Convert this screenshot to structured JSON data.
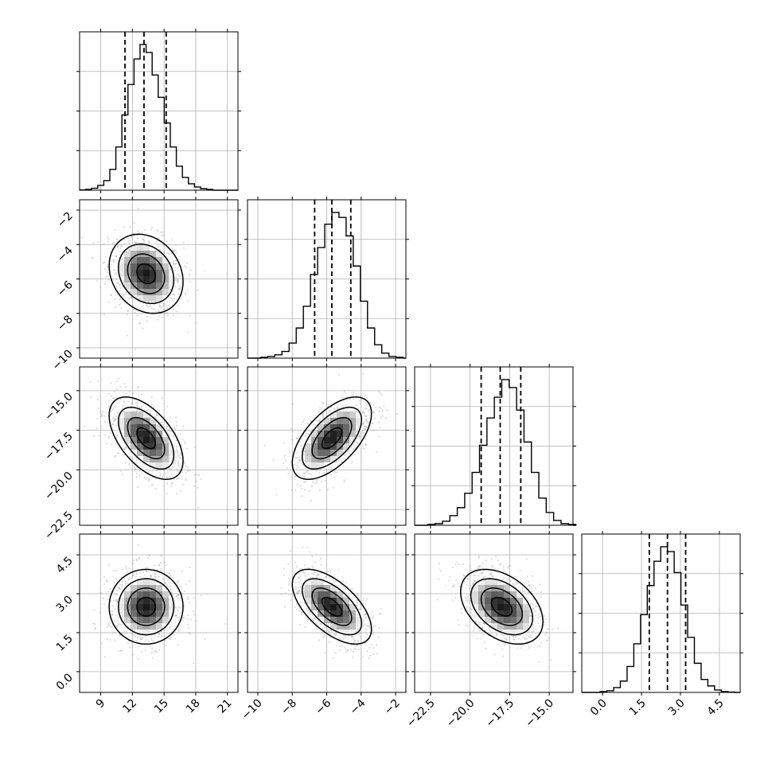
{
  "chart_data": {
    "type": "corner",
    "parameters": [
      {
        "index": 0,
        "range": [
          7,
          22
        ],
        "ticks": [
          "9",
          "12",
          "15",
          "18",
          "21"
        ],
        "tick_values": [
          9,
          12,
          15,
          18,
          21
        ],
        "quantiles": [
          11.3,
          13.1,
          15.2
        ],
        "mean": 13.3,
        "sd": 1.75,
        "hist_peak": 0.91
      },
      {
        "index": 1,
        "range": [
          -10.6,
          -1.4
        ],
        "ticks": [
          "−10",
          "−8",
          "−6",
          "−4",
          "−2"
        ],
        "tick_values": [
          -10,
          -8,
          -6,
          -4,
          -2
        ],
        "quantiles": [
          -6.7,
          -5.7,
          -4.6
        ],
        "mean": -5.7,
        "sd": 1.15,
        "hist_peak": 0.87
      },
      {
        "index": 2,
        "range": [
          -23.5,
          -13.5
        ],
        "ticks": [
          "−22.5",
          "−20.0",
          "−17.5",
          "−15.0"
        ],
        "tick_values": [
          -22.5,
          -20.0,
          -17.5,
          -15.0
        ],
        "quantiles": [
          -19.3,
          -18.1,
          -16.8
        ],
        "mean": -18.0,
        "sd": 1.3,
        "hist_peak": 0.91
      },
      {
        "index": 3,
        "range": [
          -0.8,
          5.3
        ],
        "ticks": [
          "0.0",
          "1.5",
          "3.0",
          "4.5"
        ],
        "tick_values": [
          0.0,
          1.5,
          3.0,
          4.5
        ],
        "quantiles": [
          1.8,
          2.5,
          3.2
        ],
        "mean": 2.5,
        "sd": 0.72,
        "hist_peak": 0.9
      }
    ],
    "histograms": [
      {
        "param": 0,
        "bins": 22,
        "values": [
          0.002,
          0.005,
          0.012,
          0.03,
          0.06,
          0.13,
          0.27,
          0.47,
          0.66,
          0.82,
          0.91,
          0.86,
          0.72,
          0.58,
          0.42,
          0.27,
          0.15,
          0.08,
          0.04,
          0.02,
          0.01,
          0.005
        ]
      },
      {
        "param": 1,
        "bins": 20,
        "values": [
          0.005,
          0.01,
          0.02,
          0.04,
          0.09,
          0.18,
          0.31,
          0.5,
          0.66,
          0.8,
          0.87,
          0.84,
          0.73,
          0.55,
          0.34,
          0.18,
          0.08,
          0.03,
          0.01,
          0.005
        ]
      },
      {
        "param": 2,
        "bins": 20,
        "values": [
          0.005,
          0.01,
          0.025,
          0.06,
          0.11,
          0.2,
          0.33,
          0.5,
          0.67,
          0.8,
          0.91,
          0.86,
          0.72,
          0.52,
          0.33,
          0.17,
          0.08,
          0.03,
          0.01,
          0.005
        ]
      },
      {
        "param": 3,
        "bins": 20,
        "values": [
          0.005,
          0.01,
          0.03,
          0.07,
          0.16,
          0.3,
          0.48,
          0.66,
          0.81,
          0.9,
          0.87,
          0.74,
          0.54,
          0.34,
          0.18,
          0.08,
          0.04,
          0.015,
          0.005,
          0.002
        ]
      }
    ],
    "correlations": [
      {
        "params": [
          0,
          1
        ],
        "rho": -0.2
      },
      {
        "params": [
          0,
          2
        ],
        "rho": -0.55
      },
      {
        "params": [
          1,
          2
        ],
        "rho": 0.6
      },
      {
        "params": [
          0,
          3
        ],
        "rho": 0.0
      },
      {
        "params": [
          1,
          3
        ],
        "rho": -0.6
      },
      {
        "params": [
          2,
          3
        ],
        "rho": -0.4
      }
    ],
    "contour_levels_sigma": [
      0.5,
      1.0,
      1.5,
      2.0
    ],
    "grid": true,
    "title": "",
    "xlabel": "",
    "ylabel": ""
  }
}
